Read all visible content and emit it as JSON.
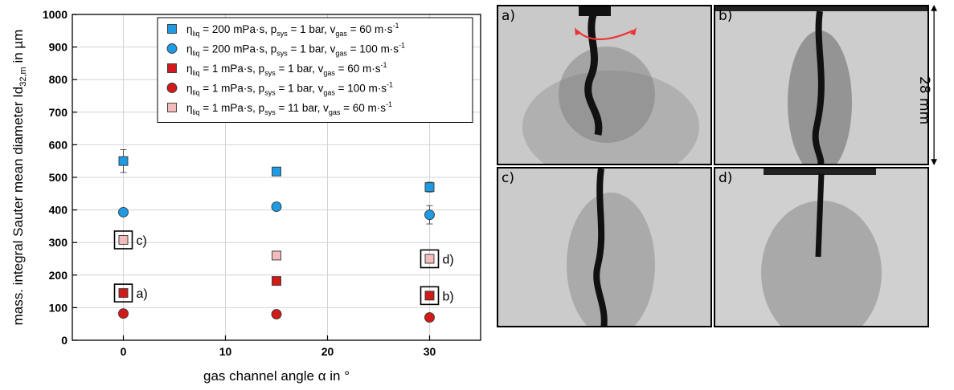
{
  "chart_data": {
    "type": "scatter",
    "xlabel": "gas channel angle α in °",
    "ylabel_main": "mass. integral Sauter mean diameter Id",
    "ylabel_sub": "32,m",
    "ylabel_unit": " in µm",
    "xlim": [
      -5,
      35
    ],
    "ylim": [
      0,
      1000
    ],
    "xticks": [
      0,
      10,
      20,
      30
    ],
    "yticks": [
      0,
      100,
      200,
      300,
      400,
      500,
      600,
      700,
      800,
      900,
      1000
    ],
    "grid": true,
    "legend_position": "top-right",
    "series": [
      {
        "name": "ηliq = 200 mPa·s, psys = 1 bar, vgas = 60 m·s-1",
        "legend_parts": [
          [
            "η",
            "liq",
            " = 200 mPa·s, p"
          ],
          [
            "",
            "sys",
            " = 1 bar, v"
          ],
          [
            "",
            "gas",
            " = 60 m·s"
          ],
          [
            "",
            "-1",
            ""
          ]
        ],
        "marker": "square",
        "color": "#1e9be3",
        "x": [
          0,
          15,
          30
        ],
        "y": [
          550,
          518,
          470
        ],
        "err": [
          35,
          8,
          15
        ]
      },
      {
        "name": "ηliq = 200 mPa·s, psys = 1 bar, vgas = 100 m·s-1",
        "legend_parts": [
          [
            "η",
            "liq",
            " = 200 mPa·s, p"
          ],
          [
            "",
            "sys",
            " = 1 bar, v"
          ],
          [
            "",
            "gas",
            " = 100 m·s"
          ],
          [
            "",
            "-1",
            ""
          ]
        ],
        "marker": "circle",
        "color": "#1e9be3",
        "x": [
          0,
          15,
          30
        ],
        "y": [
          393,
          410,
          385
        ],
        "err": [
          5,
          8,
          28
        ]
      },
      {
        "name": "ηliq = 1 mPa·s, psys = 1 bar, vgas = 60 m·s-1",
        "legend_parts": [
          [
            "η",
            "liq",
            " = 1 mPa·s, p"
          ],
          [
            "",
            "sys",
            " = 1 bar, v"
          ],
          [
            "",
            "gas",
            " = 60 m·s"
          ],
          [
            "",
            "-1",
            ""
          ]
        ],
        "marker": "square",
        "color": "#d21a1a",
        "x": [
          0,
          15,
          30
        ],
        "y": [
          145,
          182,
          137
        ],
        "err": [
          5,
          5,
          5
        ]
      },
      {
        "name": "ηliq = 1 mPa·s, psys = 1 bar, vgas = 100 m·s-1",
        "legend_parts": [
          [
            "η",
            "liq",
            " = 1 mPa·s, p"
          ],
          [
            "",
            "sys",
            " = 1 bar, v"
          ],
          [
            "",
            "gas",
            " = 100 m·s"
          ],
          [
            "",
            "-1",
            ""
          ]
        ],
        "marker": "circle",
        "color": "#d21a1a",
        "x": [
          0,
          15,
          30
        ],
        "y": [
          82,
          80,
          70
        ],
        "err": [
          3,
          3,
          3
        ]
      },
      {
        "name": "ηliq = 1 mPa·s, psys = 11 bar, vgas = 60 m·s-1",
        "legend_parts": [
          [
            "η",
            "liq",
            " = 1 mPa·s, p"
          ],
          [
            "",
            "sys",
            " = 11 bar, v"
          ],
          [
            "",
            "gas",
            " = 60 m·s"
          ],
          [
            "",
            "-1",
            ""
          ]
        ],
        "marker": "square",
        "color": "#f2bcbc",
        "x": [
          0,
          15,
          30
        ],
        "y": [
          308,
          260,
          250
        ],
        "err": [
          5,
          5,
          5
        ]
      }
    ],
    "annotations": [
      {
        "label": "a)",
        "x": 0,
        "y": 145
      },
      {
        "label": "b)",
        "x": 30,
        "y": 137
      },
      {
        "label": "c)",
        "x": 0,
        "y": 308
      },
      {
        "label": "d)",
        "x": 30,
        "y": 250
      }
    ]
  },
  "photos": {
    "panels": [
      "a)",
      "b)",
      "c)",
      "d)"
    ],
    "scale_label": "28 mm"
  }
}
